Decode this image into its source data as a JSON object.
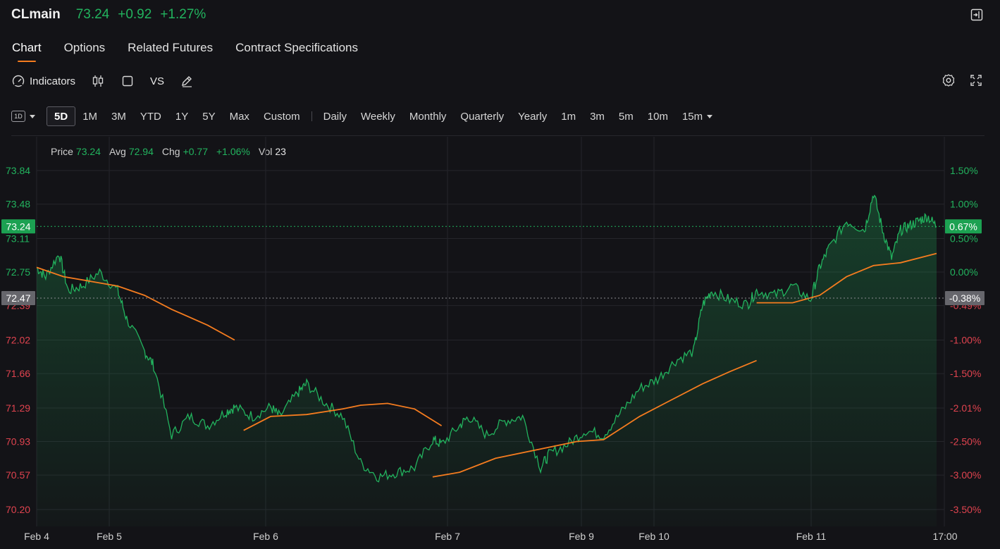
{
  "header": {
    "symbol": "CLmain",
    "price": "73.24",
    "change": "+0.92",
    "change_pct": "+1.27%"
  },
  "tabs": [
    {
      "label": "Chart",
      "active": true
    },
    {
      "label": "Options"
    },
    {
      "label": "Related Futures"
    },
    {
      "label": "Contract Specifications"
    }
  ],
  "toolbar": {
    "indicators_label": "Indicators",
    "vs_label": "VS"
  },
  "period_selector": {
    "value": "1D"
  },
  "ranges": [
    "5D",
    "1M",
    "3M",
    "YTD",
    "1Y",
    "5Y",
    "Max",
    "Custom"
  ],
  "active_range": "5D",
  "intervals": [
    "Daily",
    "Weekly",
    "Monthly",
    "Quarterly",
    "Yearly",
    "1m",
    "3m",
    "5m",
    "10m",
    "15m"
  ],
  "legend": {
    "price_label": "Price",
    "price": "73.24",
    "avg_label": "Avg",
    "avg": "72.94",
    "chg_label": "Chg",
    "chg": "+0.77",
    "chg_pct": "+1.06%",
    "vol_label": "Vol",
    "vol": "23"
  },
  "colors": {
    "up": "#22b35e",
    "down": "#e0434f",
    "avg_line": "#f57c1f",
    "accent": "#f57c1f"
  },
  "chart_data": {
    "type": "line",
    "y_left_ticks": [
      "73.84",
      "73.48",
      "73.11",
      "72.75",
      "72.39",
      "72.02",
      "71.66",
      "71.29",
      "70.93",
      "70.57",
      "70.20"
    ],
    "y_right_ticks": [
      "1.50%",
      "1.00%",
      "0.50%",
      "0.00%",
      "-0.49%",
      "-1.00%",
      "-1.50%",
      "-2.01%",
      "-2.50%",
      "-3.00%",
      "-3.50%"
    ],
    "ylim": [
      70.2,
      73.84
    ],
    "x_labels": [
      "Feb 4",
      "Feb 5",
      "Feb 6",
      "Feb 7",
      "Feb 9",
      "Feb 10",
      "Feb 11",
      "17:00"
    ],
    "last_price": "73.24",
    "last_pct": "0.67%",
    "prev_close": "72.47",
    "prev_close_pct": "-0.38%",
    "series": [
      {
        "name": "Price",
        "x": [
          0,
          0.01,
          0.025,
          0.035,
          0.05,
          0.07,
          0.09,
          0.1,
          0.12,
          0.13,
          0.15,
          0.17,
          0.19,
          0.21,
          0.22,
          0.24,
          0.26,
          0.27,
          0.29,
          0.3,
          0.32,
          0.34,
          0.36,
          0.38,
          0.4,
          0.42,
          0.44,
          0.45,
          0.47,
          0.48,
          0.5,
          0.52,
          0.54,
          0.56,
          0.57,
          0.59,
          0.61,
          0.63,
          0.65,
          0.67,
          0.69,
          0.71,
          0.73,
          0.74,
          0.75,
          0.77,
          0.79,
          0.8,
          0.82,
          0.84,
          0.86,
          0.87,
          0.88,
          0.9,
          0.92,
          0.93,
          0.94,
          0.95,
          0.96,
          0.97,
          0.98,
          0.99,
          1.0
        ],
        "y": [
          72.8,
          72.7,
          72.95,
          72.55,
          72.6,
          72.75,
          72.55,
          72.25,
          71.9,
          71.75,
          71.0,
          71.2,
          71.1,
          71.25,
          71.3,
          71.2,
          71.3,
          71.2,
          71.45,
          71.55,
          71.35,
          71.2,
          70.7,
          70.55,
          70.6,
          70.65,
          70.95,
          70.9,
          71.1,
          71.2,
          71.0,
          71.15,
          71.2,
          70.65,
          70.8,
          70.9,
          71.05,
          71.0,
          71.25,
          71.5,
          71.6,
          71.8,
          71.9,
          72.4,
          72.55,
          72.45,
          72.4,
          72.55,
          72.5,
          72.6,
          72.45,
          72.8,
          73.0,
          73.3,
          73.2,
          73.6,
          73.2,
          72.9,
          73.2,
          73.25,
          73.3,
          73.35,
          73.24
        ]
      },
      {
        "name": "Avg",
        "segments": [
          {
            "x": [
              0,
              0.03,
              0.06,
              0.09,
              0.12,
              0.15,
              0.19,
              0.22
            ],
            "y": [
              72.8,
              72.7,
              72.65,
              72.6,
              72.5,
              72.35,
              72.18,
              72.02
            ]
          },
          {
            "x": [
              0.23,
              0.26,
              0.3,
              0.34,
              0.36,
              0.39,
              0.42,
              0.45
            ],
            "y": [
              71.05,
              71.2,
              71.22,
              71.28,
              71.32,
              71.34,
              71.28,
              71.1
            ]
          },
          {
            "x": [
              0.44,
              0.47,
              0.51,
              0.56,
              0.6,
              0.63,
              0.67,
              0.7,
              0.74,
              0.77,
              0.8
            ],
            "y": [
              70.55,
              70.6,
              70.75,
              70.85,
              70.93,
              70.95,
              71.2,
              71.35,
              71.55,
              71.68,
              71.8
            ]
          },
          {
            "x": [
              0.8,
              0.84,
              0.87,
              0.9,
              0.93,
              0.96,
              1.0
            ],
            "y": [
              72.42,
              72.42,
              72.5,
              72.7,
              72.82,
              72.85,
              72.95
            ]
          }
        ]
      }
    ],
    "grid": true
  }
}
